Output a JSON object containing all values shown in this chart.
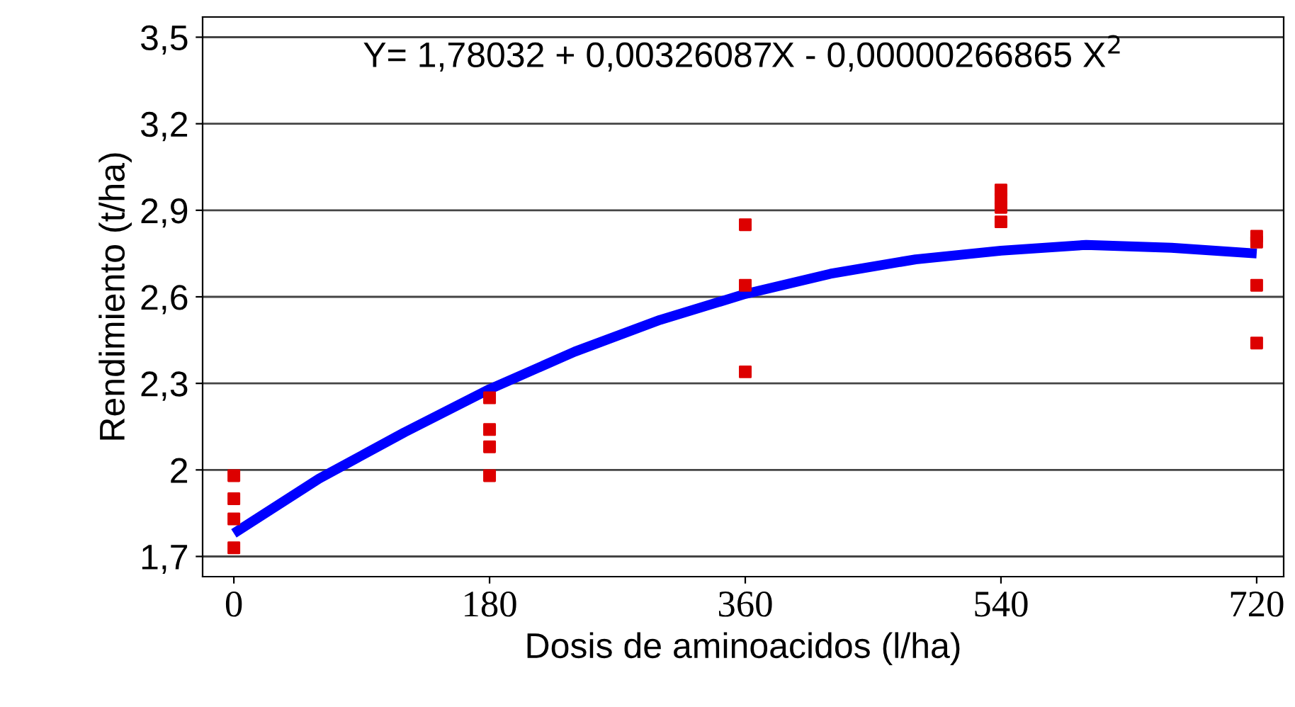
{
  "chart_data": {
    "type": "scatter",
    "xlabel": "Dosis de aminoacidos (l/ha)",
    "ylabel": "Rendimiento (t/ha)",
    "annotations": [
      "Y= 1,78032 + 0,00326087X - 0,00000266865 X$^{2}$"
    ],
    "xlim": [
      -22,
      739
    ],
    "ylim": [
      1.63,
      3.57
    ],
    "xticks": [
      0,
      180,
      360,
      540,
      720
    ],
    "yticks": [
      {
        "value": 1.7,
        "label": "1,7"
      },
      {
        "value": 2.0,
        "label": "2"
      },
      {
        "value": 2.3,
        "label": "2,3"
      },
      {
        "value": 2.6,
        "label": "2,6"
      },
      {
        "value": 2.9,
        "label": "2,9"
      },
      {
        "value": 3.2,
        "label": "3,2"
      },
      {
        "value": 3.5,
        "label": "3,5"
      }
    ],
    "grid": "y",
    "legend": false,
    "series": [
      {
        "marker": "square",
        "color": "#dd0000",
        "x": [
          0,
          0,
          0,
          0,
          180,
          180,
          180,
          180,
          360,
          360,
          360,
          540,
          540,
          540,
          540,
          720,
          720,
          720,
          720
        ],
        "values": [
          1.98,
          1.9,
          1.83,
          1.73,
          2.25,
          2.14,
          2.08,
          1.98,
          2.85,
          2.64,
          2.34,
          2.97,
          2.94,
          2.91,
          2.86,
          2.81,
          2.79,
          2.64,
          2.44
        ]
      },
      {
        "type": "line",
        "marker": "none",
        "color": "#0000ff",
        "x": [
          0,
          60,
          120,
          180,
          240,
          300,
          360,
          420,
          480,
          540,
          600,
          660,
          720
        ],
        "values": [
          1.78,
          1.97,
          2.13,
          2.28,
          2.41,
          2.52,
          2.61,
          2.68,
          2.73,
          2.76,
          2.78,
          2.77,
          2.75
        ]
      }
    ]
  }
}
